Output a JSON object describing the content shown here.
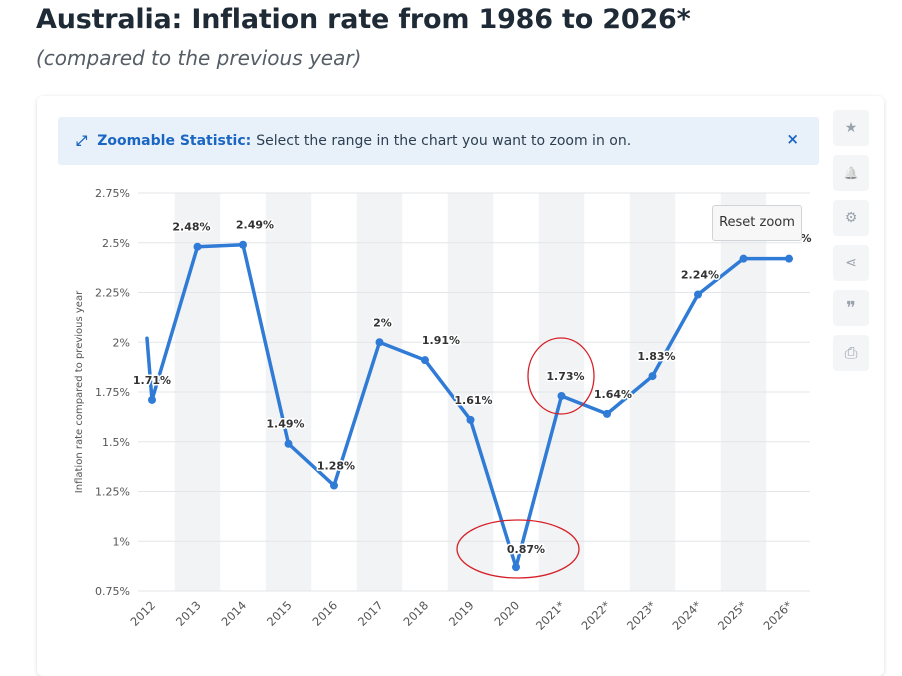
{
  "header": {
    "title": "Australia: Inflation rate from 1986 to 2026*",
    "subtitle": "(compared to the previous year)"
  },
  "banner": {
    "icon": "expand-arrows-icon",
    "lead": "Zoomable Statistic:",
    "text": "Select the range in the chart you want to zoom in on.",
    "close": "×"
  },
  "reset_zoom_label": "Reset zoom",
  "sidebar": {
    "buttons": [
      {
        "name": "favorite",
        "icon": "star-icon",
        "glyph": "★"
      },
      {
        "name": "notification",
        "icon": "bell-icon",
        "glyph": "🔔"
      },
      {
        "name": "settings",
        "icon": "gear-icon",
        "glyph": "⚙"
      },
      {
        "name": "share",
        "icon": "share-icon",
        "glyph": "⋖"
      },
      {
        "name": "cite",
        "icon": "quote-icon",
        "glyph": "❞"
      },
      {
        "name": "print",
        "icon": "print-icon",
        "glyph": "⎙"
      }
    ]
  },
  "colors": {
    "line": "#2f7bd6",
    "annotation": "#d62027",
    "band": "#f1f3f5",
    "grid": "#e3e5e8"
  },
  "chart_data": {
    "type": "line",
    "title": "Australia: Inflation rate from 1986 to 2026*",
    "subtitle": "(compared to the previous year)",
    "xlabel": "",
    "ylabel": "Inflation rate compared to previous year",
    "categories": [
      "2012",
      "2013",
      "2014",
      "2015",
      "2016",
      "2017",
      "2018",
      "2019",
      "2020",
      "2021*",
      "2022*",
      "2023*",
      "2024*",
      "2025*",
      "2026*"
    ],
    "series": [
      {
        "name": "Inflation rate",
        "values": [
          1.71,
          2.48,
          2.49,
          1.49,
          1.28,
          2.0,
          1.91,
          1.61,
          0.87,
          1.73,
          1.64,
          1.83,
          2.24,
          2.42,
          2.42
        ],
        "labels": [
          "1.71%",
          "2.48%",
          "2.49%",
          "1.49%",
          "1.28%",
          "2%",
          "1.91%",
          "1.61%",
          "0.87%",
          "1.73%",
          "1.64%",
          "1.83%",
          "2.24%",
          "",
          ""
        ]
      }
    ],
    "partial_labels": [
      "%"
    ],
    "lead_in_value": 2.02,
    "ylim": [
      0.75,
      2.75
    ],
    "yticks": [
      0.75,
      1,
      1.25,
      1.5,
      1.75,
      2,
      2.25,
      2.5,
      2.75
    ],
    "yticklabels": [
      "0.75%",
      "1%",
      "1.25%",
      "1.5%",
      "1.75%",
      "2%",
      "2.25%",
      "2.5%",
      "2.75%"
    ],
    "grid": true,
    "annotations": [
      {
        "type": "ellipse",
        "target": "2021*",
        "color": "#d62027"
      },
      {
        "type": "ellipse",
        "target": "2020",
        "color": "#d62027"
      }
    ]
  }
}
